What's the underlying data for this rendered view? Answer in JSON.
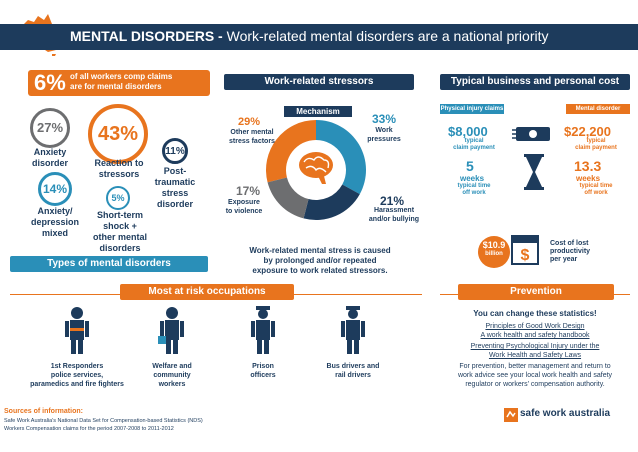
{
  "header": {
    "title_bold": "MENTAL DISORDERS - ",
    "title_rest": "Work-related mental disorders are a national priority"
  },
  "stat": {
    "value": "6%",
    "text_line1": "of all workers comp claims",
    "text_line2": "are for mental disorders"
  },
  "types": {
    "heading": "Types of mental disorders",
    "items": [
      {
        "pct": "27%",
        "label_lines": [
          "Anxiety",
          "disorder"
        ]
      },
      {
        "pct": "43%",
        "label_lines": [
          "Reaction to",
          "stressors"
        ]
      },
      {
        "pct": "11%",
        "label_lines": [
          "Post-",
          "traumatic",
          "stress",
          "disorder"
        ]
      },
      {
        "pct": "14%",
        "label_lines": [
          "Anxiety/",
          "depression",
          "mixed"
        ]
      },
      {
        "pct": "5%",
        "label_lines": [
          "Short-term",
          "shock +",
          "other mental",
          "disorders"
        ]
      }
    ]
  },
  "stressors": {
    "heading": "Work-related stressors",
    "mechanism_label": "Mechanism",
    "segments": [
      {
        "pct": "29%",
        "label_lines": [
          "Other mental",
          "stress factors"
        ],
        "value": 29,
        "color": "#e8741e"
      },
      {
        "pct": "33%",
        "label_lines": [
          "Work",
          "pressures"
        ],
        "value": 33,
        "color": "#2a8fb8"
      },
      {
        "pct": "21%",
        "label_lines": [
          "Harassment",
          "and/or bullying"
        ],
        "value": 21,
        "color": "#1d3b5c"
      },
      {
        "pct": "17%",
        "label_lines": [
          "Exposure",
          "to violence"
        ],
        "value": 17,
        "color": "#6d6e70"
      }
    ],
    "caption_lines": [
      "Work-related mental stress is caused",
      "by prolonged and/or repeated",
      "exposure to work related stressors."
    ]
  },
  "costs": {
    "heading": "Typical business and personal cost",
    "physical_label": "Physical injury claims",
    "mental_label": "Mental disorder claims",
    "physical_payment": "$8,000",
    "physical_payment_sub": [
      "typical",
      "claim payment"
    ],
    "mental_payment": "$22,200",
    "mental_payment_sub": [
      "typical",
      "claim payment"
    ],
    "physical_weeks": "5",
    "physical_weeks_unit": "weeks",
    "physical_weeks_sub": [
      "typical time",
      "off work"
    ],
    "mental_weeks": "13.3",
    "mental_weeks_unit": "weeks",
    "mental_weeks_sub": [
      "typical time",
      "off work"
    ],
    "productivity_value": "$10.9",
    "productivity_unit": "billion",
    "productivity_lines": [
      "Cost of lost",
      "productivity",
      "per year"
    ]
  },
  "occupations": {
    "heading": "Most at risk occupations",
    "items": [
      {
        "label_lines": [
          "1st Responders",
          "police services,",
          "paramedics and fire fighters"
        ]
      },
      {
        "label_lines": [
          "Welfare and",
          "community",
          "workers"
        ]
      },
      {
        "label_lines": [
          "Prison",
          "officers"
        ]
      },
      {
        "label_lines": [
          "Bus drivers and",
          "rail drivers"
        ]
      }
    ]
  },
  "prevention": {
    "heading": "Prevention",
    "tagline": "You can change these statistics!",
    "link1_lines": [
      "Principles of Good Work Design",
      "A work health and safety handbook"
    ],
    "link2_lines": [
      "Preventing Psychological Injury under the",
      "Work Health and Safety Laws"
    ],
    "body_lines": [
      "For prevention, better management and return to",
      "work advice see your local work health and safety",
      "regulator or workers' compensation authority."
    ]
  },
  "sources": {
    "heading": "Sources of information:",
    "line1": "Safe Work Australia's National Data Set for Compensation-based Statistics (NDS)",
    "line2": "Workers Compensation claims for the period 2007-2008 to 2011-2012"
  },
  "logo": {
    "text": "safe work australia"
  },
  "colors": {
    "navy": "#1d3b5c",
    "orange": "#e8741e",
    "teal": "#2a8fb8",
    "grey": "#6d6e70"
  }
}
